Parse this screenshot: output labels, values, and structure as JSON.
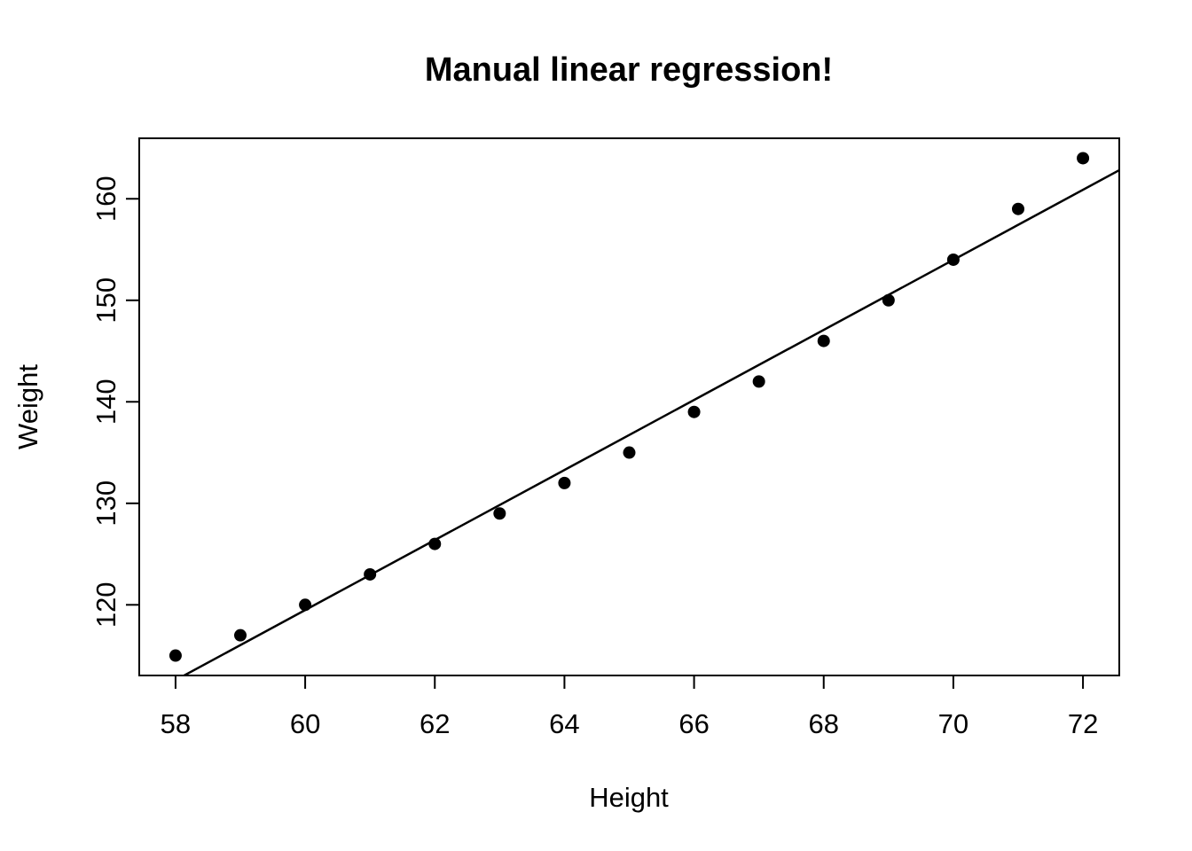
{
  "chart_data": {
    "type": "scatter",
    "title": "Manual linear regression!",
    "xlabel": "Height",
    "ylabel": "Weight",
    "x": [
      58,
      59,
      60,
      61,
      62,
      63,
      64,
      65,
      66,
      67,
      68,
      69,
      70,
      71,
      72
    ],
    "y": [
      115,
      117,
      120,
      123,
      126,
      129,
      132,
      135,
      139,
      142,
      146,
      150,
      154,
      159,
      164
    ],
    "xlim": [
      57.44,
      72.56
    ],
    "ylim": [
      113.04,
      165.96
    ],
    "x_ticks": [
      58,
      60,
      62,
      64,
      66,
      68,
      70,
      72
    ],
    "y_ticks": [
      120,
      130,
      140,
      150,
      160
    ],
    "regression_line": {
      "intercept": -87.51667,
      "slope": 3.45
    },
    "grid": false,
    "legend": "none",
    "colors": {
      "background": "#ffffff",
      "points": "#000000",
      "line": "#000000",
      "axis": "#000000",
      "text": "#000000"
    }
  }
}
